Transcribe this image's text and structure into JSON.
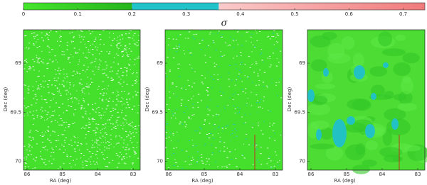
{
  "colorbar": {
    "lim": [
      0,
      0.74
    ],
    "ticks": [
      0,
      0.1,
      0.2,
      0.3,
      0.4,
      0.5,
      0.6,
      0.7
    ],
    "segments": [
      {
        "from": 0,
        "to": 0.2,
        "color": "#3fe02a"
      },
      {
        "from": 0.2,
        "to": 0.36,
        "color": "#1fc3c9"
      },
      {
        "from": 0.36,
        "to": 0.74,
        "color": "#f07a7a"
      }
    ]
  },
  "symbol": "σ",
  "panels": [
    {
      "xlabel": "RA (deg)",
      "ylabel": "Dec (deg)",
      "xlim": [
        86.1,
        82.8
      ],
      "ylim": [
        68.66,
        70.09
      ],
      "xticks": [
        86,
        85,
        84,
        83
      ],
      "yticks": [
        69,
        69.5,
        70
      ]
    },
    {
      "xlabel": "RA (deg)",
      "ylabel": "Dec (deg)",
      "xlim": [
        86.1,
        82.8
      ],
      "ylim": [
        68.66,
        70.09
      ],
      "xticks": [
        86,
        85,
        84,
        83
      ],
      "yticks": [
        69,
        69.5,
        70
      ]
    },
    {
      "xlabel": "RA (deg)",
      "ylabel": "Dec (deg)",
      "xlim": [
        86.1,
        82.8
      ],
      "ylim": [
        68.66,
        70.09
      ],
      "xticks": [
        86,
        85,
        84,
        83
      ],
      "yticks": [
        69,
        69.5,
        70
      ]
    }
  ]
}
